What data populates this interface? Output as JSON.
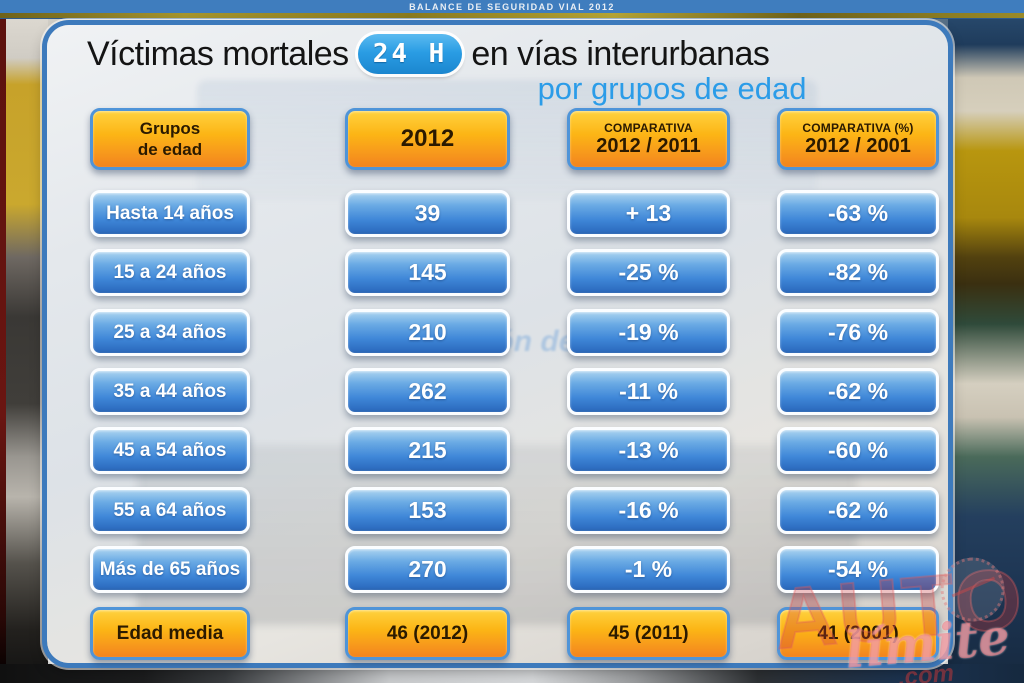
{
  "top_bar": {
    "title": "BALANCE DE SEGURIDAD VIAL 2012"
  },
  "slide": {
    "title_prefix": "Víctimas mortales",
    "badge": "24 H",
    "title_suffix": "en vías interurbanas",
    "subtitle": "por grupos de edad"
  },
  "table": {
    "headers": {
      "col1_line1": "Grupos",
      "col1_line2": "de edad",
      "col2": "2012",
      "col3_line1": "COMPARATIVA",
      "col3_line2": "2012 / 2011",
      "col4_line1": "COMPARATIVA (%)",
      "col4_line2": "2012 / 2001"
    },
    "rows": [
      {
        "label": "Hasta 14 años",
        "v2012": "39",
        "comp2011": "+ 13",
        "comp2001": "-63 %"
      },
      {
        "label": "15 a 24 años",
        "v2012": "145",
        "comp2011": "-25 %",
        "comp2001": "-82 %"
      },
      {
        "label": "25 a 34 años",
        "v2012": "210",
        "comp2011": "-19 %",
        "comp2001": "-76 %"
      },
      {
        "label": "35 a 44 años",
        "v2012": "262",
        "comp2011": "-11 %",
        "comp2001": "-62 %"
      },
      {
        "label": "45 a 54 años",
        "v2012": "215",
        "comp2011": "-13 %",
        "comp2001": "-60 %"
      },
      {
        "label": "55 a 64 años",
        "v2012": "153",
        "comp2011": "-16 %",
        "comp2001": "-62 %"
      },
      {
        "label": "Más de 65 años",
        "v2012": "270",
        "comp2011": "-1 %",
        "comp2001": "-54 %"
      }
    ],
    "footer": {
      "label": "Edad media",
      "v2012": "46 (2012)",
      "comp2011": "45 (2011)",
      "comp2001": "41 (2001)"
    }
  },
  "background": {
    "photo_text": "ección de Tráfico"
  },
  "watermark": {
    "line1": "AUTO",
    "line2": "límite",
    "line3": ".com"
  },
  "colors": {
    "top_bar_blue": "#3f7dbe",
    "gold_strip": "#9a8a28",
    "panel_border_blue": "#3d7abc",
    "cell_blue_top": "#abd3f0",
    "cell_blue_bottom": "#2e6ec2",
    "cell_orange_top": "#ffd23f",
    "cell_orange_bottom": "#f2841f",
    "subtitle_blue": "#2b9ce8",
    "badge_blue": "#2a9de4",
    "watermark_red": "#cd3737"
  }
}
